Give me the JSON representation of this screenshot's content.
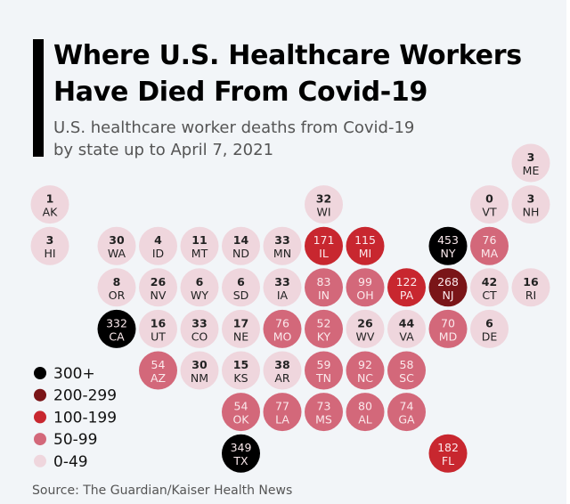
{
  "chart_data": {
    "type": "tile-map",
    "title": "Where U.S. Healthcare Workers Have Died From Covid-19",
    "title_lines": [
      "Where U.S. Healthcare Workers",
      "Have Died From Covid-19"
    ],
    "subtitle_lines": [
      "U.S. healthcare worker deaths from Covid-19",
      "by state up to April 7, 2021"
    ],
    "source": "Source: The Guardian/Kaiser Health News",
    "legend": [
      {
        "label": "300+",
        "min": 300,
        "color": "#000000"
      },
      {
        "label": "200-299",
        "min": 200,
        "color": "#7a1518"
      },
      {
        "label": "100-199",
        "min": 100,
        "color": "#c8272f"
      },
      {
        "label": "50-99",
        "min": 50,
        "color": "#d3687a"
      },
      {
        "label": "0-49",
        "min": 0,
        "color": "#efd6dd"
      }
    ],
    "legend_placement": "bottom-left",
    "states": [
      {
        "state": "ME",
        "value": 3,
        "row": 0,
        "col": 11
      },
      {
        "state": "AK",
        "value": 1,
        "row": 1,
        "col": 0
      },
      {
        "state": "WI",
        "value": 32,
        "row": 1,
        "col": 6
      },
      {
        "state": "VT",
        "value": 0,
        "row": 1,
        "col": 10
      },
      {
        "state": "NH",
        "value": 3,
        "row": 1,
        "col": 11
      },
      {
        "state": "HI",
        "value": 3,
        "row": 2,
        "col": 0
      },
      {
        "state": "WA",
        "value": 30,
        "row": 2,
        "col": 1
      },
      {
        "state": "ID",
        "value": 4,
        "row": 2,
        "col": 2
      },
      {
        "state": "MT",
        "value": 11,
        "row": 2,
        "col": 3
      },
      {
        "state": "ND",
        "value": 14,
        "row": 2,
        "col": 4
      },
      {
        "state": "MN",
        "value": 33,
        "row": 2,
        "col": 5
      },
      {
        "state": "IL",
        "value": 171,
        "row": 2,
        "col": 6
      },
      {
        "state": "MI",
        "value": 115,
        "row": 2,
        "col": 7
      },
      {
        "state": "NY",
        "value": 453,
        "row": 2,
        "col": 9
      },
      {
        "state": "MA",
        "value": 76,
        "row": 2,
        "col": 10
      },
      {
        "state": "OR",
        "value": 8,
        "row": 3,
        "col": 1
      },
      {
        "state": "NV",
        "value": 26,
        "row": 3,
        "col": 2
      },
      {
        "state": "WY",
        "value": 6,
        "row": 3,
        "col": 3
      },
      {
        "state": "SD",
        "value": 6,
        "row": 3,
        "col": 4
      },
      {
        "state": "IA",
        "value": 33,
        "row": 3,
        "col": 5
      },
      {
        "state": "IN",
        "value": 83,
        "row": 3,
        "col": 6
      },
      {
        "state": "OH",
        "value": 99,
        "row": 3,
        "col": 7
      },
      {
        "state": "PA",
        "value": 122,
        "row": 3,
        "col": 8
      },
      {
        "state": "NJ",
        "value": 268,
        "row": 3,
        "col": 9
      },
      {
        "state": "CT",
        "value": 42,
        "row": 3,
        "col": 10
      },
      {
        "state": "RI",
        "value": 16,
        "row": 3,
        "col": 11
      },
      {
        "state": "CA",
        "value": 332,
        "row": 4,
        "col": 1
      },
      {
        "state": "UT",
        "value": 16,
        "row": 4,
        "col": 2
      },
      {
        "state": "CO",
        "value": 33,
        "row": 4,
        "col": 3
      },
      {
        "state": "NE",
        "value": 17,
        "row": 4,
        "col": 4
      },
      {
        "state": "MO",
        "value": 76,
        "row": 4,
        "col": 5
      },
      {
        "state": "KY",
        "value": 52,
        "row": 4,
        "col": 6
      },
      {
        "state": "WV",
        "value": 26,
        "row": 4,
        "col": 7
      },
      {
        "state": "VA",
        "value": 44,
        "row": 4,
        "col": 8
      },
      {
        "state": "MD",
        "value": 70,
        "row": 4,
        "col": 9
      },
      {
        "state": "DE",
        "value": 6,
        "row": 4,
        "col": 10
      },
      {
        "state": "AZ",
        "value": 54,
        "row": 5,
        "col": 2
      },
      {
        "state": "NM",
        "value": 30,
        "row": 5,
        "col": 3
      },
      {
        "state": "KS",
        "value": 15,
        "row": 5,
        "col": 4
      },
      {
        "state": "AR",
        "value": 38,
        "row": 5,
        "col": 5
      },
      {
        "state": "TN",
        "value": 59,
        "row": 5,
        "col": 6
      },
      {
        "state": "NC",
        "value": 92,
        "row": 5,
        "col": 7
      },
      {
        "state": "SC",
        "value": 58,
        "row": 5,
        "col": 8
      },
      {
        "state": "OK",
        "value": 54,
        "row": 6,
        "col": 4
      },
      {
        "state": "LA",
        "value": 77,
        "row": 6,
        "col": 5
      },
      {
        "state": "MS",
        "value": 73,
        "row": 6,
        "col": 6
      },
      {
        "state": "AL",
        "value": 80,
        "row": 6,
        "col": 7
      },
      {
        "state": "GA",
        "value": 74,
        "row": 6,
        "col": 8
      },
      {
        "state": "TX",
        "value": 349,
        "row": 7,
        "col": 4
      },
      {
        "state": "FL",
        "value": 182,
        "row": 7,
        "col": 9
      }
    ]
  }
}
